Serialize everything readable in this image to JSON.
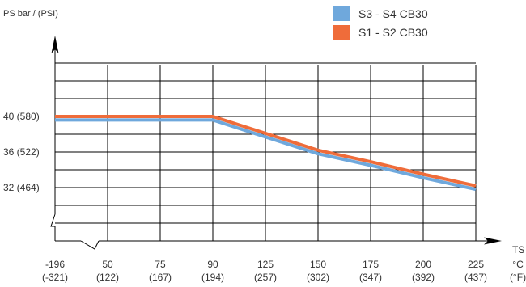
{
  "chart_data": {
    "type": "line",
    "ylabel": "PS bar / (PSI)",
    "xlabel": "TS",
    "x_units": [
      "°C",
      "(°F)"
    ],
    "categories": [
      {
        "c": "-196",
        "f": "(-321)"
      },
      {
        "c": "50",
        "f": "(122)"
      },
      {
        "c": "75",
        "f": "(167)"
      },
      {
        "c": "90",
        "f": "(194)"
      },
      {
        "c": "125",
        "f": "(257)"
      },
      {
        "c": "150",
        "f": "(302)"
      },
      {
        "c": "175",
        "f": "(347)"
      },
      {
        "c": "200",
        "f": "(392)"
      },
      {
        "c": "225",
        "f": "(437)"
      }
    ],
    "y_ticks": [
      {
        "value": 40,
        "label": "40 (580)"
      },
      {
        "value": 36,
        "label": "36 (522)"
      },
      {
        "value": 32,
        "label": "32 (464)"
      }
    ],
    "ylim": [
      26,
      48
    ],
    "y_axis_break": true,
    "x_axis_break": true,
    "grid": true,
    "legend_position": "top-right",
    "series": [
      {
        "name": "S3 - S4 CB30",
        "color": "#6fa8dc",
        "values": [
          39.6,
          39.6,
          39.6,
          39.6,
          37.7,
          35.8,
          34.5,
          33.1,
          31.8
        ]
      },
      {
        "name": "S1 - S2 CB30",
        "color": "#ef6c3a",
        "values": [
          40.0,
          40.0,
          40.0,
          40.0,
          38.1,
          36.2,
          34.9,
          33.5,
          32.2
        ]
      }
    ]
  }
}
